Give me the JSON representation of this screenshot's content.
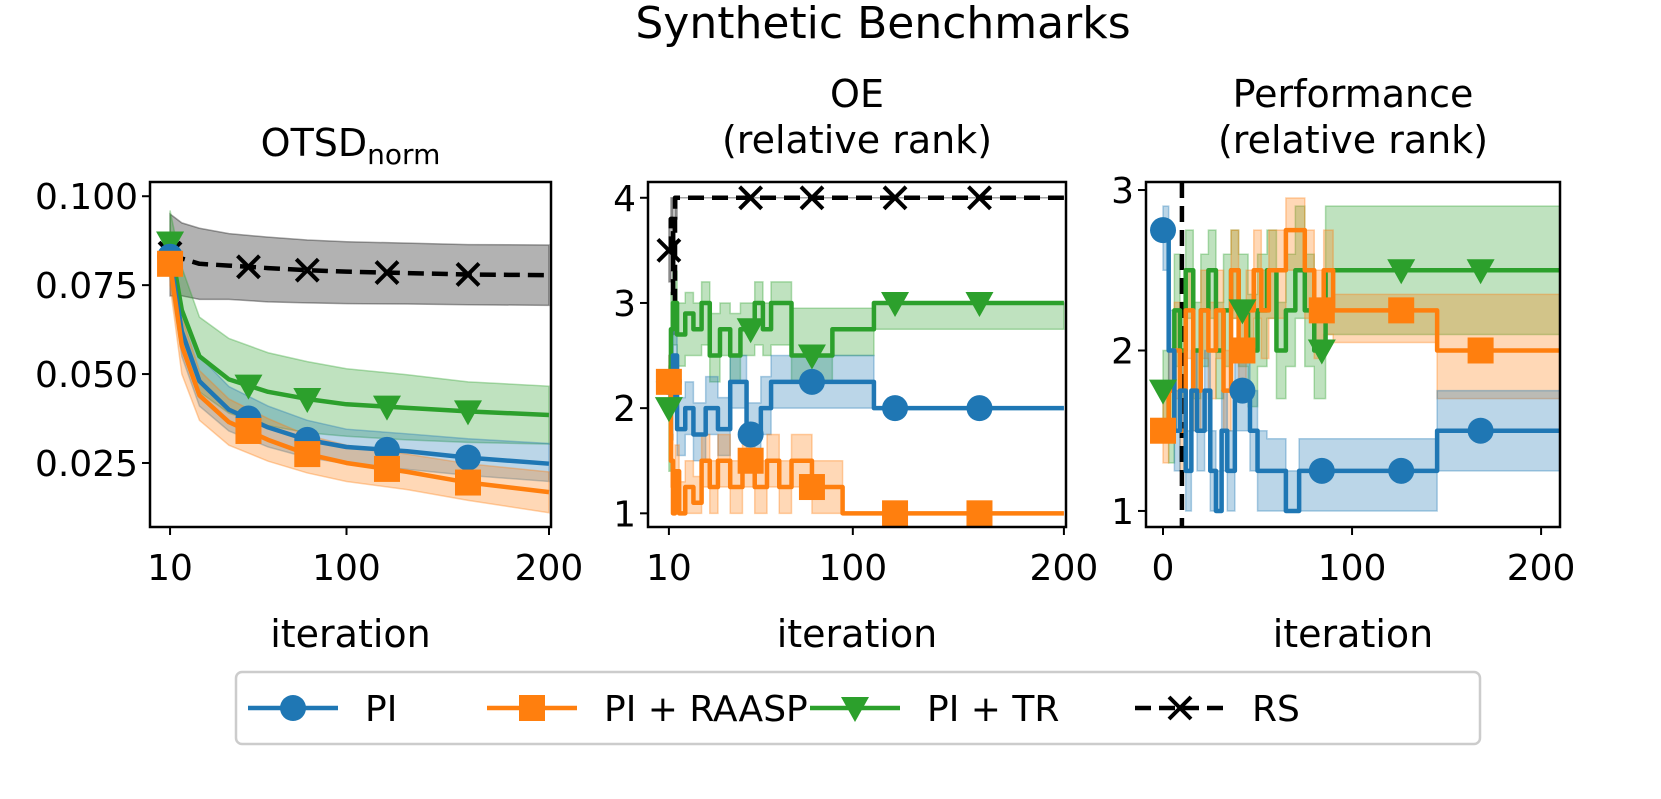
{
  "figure": {
    "title": "Synthetic Benchmarks"
  },
  "colors": {
    "PI": "#1f77b4",
    "PI + RAASP": "#ff7f0e",
    "PI + TR": "#2ca02c",
    "RS": "#000000"
  },
  "legend": {
    "items": [
      {
        "label": "PI",
        "color": "#1f77b4",
        "marker": "circle",
        "dash": "solid"
      },
      {
        "label": "PI + RAASP",
        "color": "#ff7f0e",
        "marker": "square",
        "dash": "solid"
      },
      {
        "label": "PI + TR",
        "color": "#2ca02c",
        "marker": "triangle-down",
        "dash": "solid"
      },
      {
        "label": "RS",
        "color": "#000000",
        "marker": "x",
        "dash": "dashed"
      }
    ]
  },
  "chart_data": [
    {
      "type": "line",
      "title_main": "OTSD",
      "title_sub": "norm",
      "xlabel": "iteration",
      "ylabel": "",
      "xlim": [
        10,
        200
      ],
      "ylim": [
        0.007,
        0.104
      ],
      "xticks": [
        10,
        100,
        200
      ],
      "xtick_labels": [
        "10",
        "100",
        "200"
      ],
      "yticks": [
        0.025,
        0.05,
        0.075,
        0.1
      ],
      "ytick_labels": [
        "0.025",
        "0.050",
        "0.075",
        "0.100"
      ],
      "series": [
        {
          "name": "RS",
          "style": "smooth",
          "x": [
            10,
            16,
            25,
            40,
            60,
            80,
            100,
            130,
            160,
            200
          ],
          "y": [
            0.084,
            0.0825,
            0.081,
            0.0805,
            0.0798,
            0.0792,
            0.0788,
            0.0784,
            0.078,
            0.0778
          ],
          "lo": [
            0.072,
            0.072,
            0.071,
            0.071,
            0.0703,
            0.07,
            0.0698,
            0.0697,
            0.0695,
            0.0693
          ],
          "hi": [
            0.095,
            0.0925,
            0.091,
            0.0895,
            0.0885,
            0.0877,
            0.0872,
            0.0868,
            0.0864,
            0.0863
          ],
          "markers_x": [
            10,
            50,
            80,
            120,
            160
          ]
        },
        {
          "name": "PI + TR",
          "style": "smooth",
          "x": [
            10,
            16,
            25,
            40,
            60,
            80,
            100,
            130,
            160,
            200
          ],
          "y": [
            0.087,
            0.068,
            0.055,
            0.0485,
            0.045,
            0.043,
            0.0415,
            0.0405,
            0.0395,
            0.0385
          ],
          "lo": [
            0.079,
            0.058,
            0.045,
            0.039,
            0.0355,
            0.0335,
            0.0325,
            0.0315,
            0.0308,
            0.0303
          ],
          "hi": [
            0.096,
            0.08,
            0.066,
            0.06,
            0.056,
            0.0535,
            0.0515,
            0.0498,
            0.0478,
            0.0466
          ],
          "markers_x": [
            10,
            50,
            80,
            120,
            160
          ]
        },
        {
          "name": "PI",
          "style": "smooth",
          "x": [
            10,
            16,
            25,
            40,
            60,
            80,
            100,
            130,
            160,
            200
          ],
          "y": [
            0.083,
            0.062,
            0.048,
            0.04,
            0.035,
            0.0315,
            0.0295,
            0.0283,
            0.0265,
            0.0248
          ],
          "lo": [
            0.077,
            0.055,
            0.041,
            0.034,
            0.0295,
            0.0265,
            0.0248,
            0.0232,
            0.0215,
            0.0198
          ],
          "hi": [
            0.09,
            0.069,
            0.055,
            0.0465,
            0.041,
            0.037,
            0.0345,
            0.0332,
            0.0318,
            0.0305
          ],
          "markers_x": [
            10,
            50,
            80,
            120,
            160
          ]
        },
        {
          "name": "PI + RAASP",
          "style": "smooth",
          "x": [
            10,
            16,
            25,
            40,
            60,
            80,
            100,
            130,
            160,
            200
          ],
          "y": [
            0.081,
            0.058,
            0.044,
            0.0365,
            0.0315,
            0.0275,
            0.025,
            0.0225,
            0.0195,
            0.0168
          ],
          "lo": [
            0.075,
            0.05,
            0.037,
            0.03,
            0.0255,
            0.0222,
            0.0198,
            0.0175,
            0.0145,
            0.011
          ],
          "hi": [
            0.087,
            0.066,
            0.051,
            0.043,
            0.0375,
            0.0328,
            0.03,
            0.0275,
            0.0248,
            0.0225
          ],
          "markers_x": [
            10,
            50,
            80,
            120,
            160
          ]
        }
      ]
    },
    {
      "type": "line",
      "title_lines": [
        "OE",
        "(relative rank)"
      ],
      "xlabel": "iteration",
      "ylabel": "",
      "xlim": [
        10,
        200
      ],
      "ylim": [
        0.87,
        4.15
      ],
      "xticks": [
        10,
        100,
        200
      ],
      "xtick_labels": [
        "10",
        "100",
        "200"
      ],
      "yticks": [
        1,
        2,
        3,
        4
      ],
      "ytick_labels": [
        "1",
        "2",
        "3",
        "4"
      ],
      "series": [
        {
          "name": "RS",
          "style": "step",
          "x": [
            10,
            11,
            12,
            13,
            14,
            200
          ],
          "y": [
            3.5,
            3.8,
            3.0,
            4.0,
            4.0,
            4.0
          ],
          "lo": [
            3.2,
            3.3,
            2.7,
            3.8,
            4.0,
            4.0
          ],
          "hi": [
            3.8,
            4.0,
            3.6,
            4.0,
            4.0,
            4.0
          ],
          "markers_x": [
            10,
            50,
            80,
            120,
            160
          ]
        },
        {
          "name": "PI + TR",
          "style": "step",
          "x": [
            10,
            11,
            12,
            14,
            18,
            22,
            26,
            30,
            35,
            40,
            45,
            52,
            56,
            60,
            70,
            80,
            90,
            110,
            200
          ],
          "y": [
            2.0,
            2.75,
            3.0,
            2.7,
            2.9,
            2.75,
            3.0,
            2.5,
            2.75,
            2.5,
            2.75,
            3.0,
            2.75,
            3.0,
            2.5,
            2.5,
            2.75,
            3.0,
            3.0
          ],
          "lo": [
            1.4,
            2.3,
            2.6,
            2.4,
            2.5,
            2.5,
            2.6,
            2.25,
            2.5,
            2.25,
            2.5,
            2.6,
            2.5,
            2.6,
            2.25,
            2.25,
            2.5,
            2.75,
            3.0
          ],
          "hi": [
            2.4,
            3.1,
            3.3,
            3.0,
            3.1,
            3.0,
            3.2,
            2.9,
            3.0,
            2.9,
            3.0,
            3.2,
            3.0,
            3.2,
            2.95,
            2.95,
            2.95,
            3.0,
            3.0
          ],
          "markers_x": [
            10,
            50,
            80,
            120,
            160
          ]
        },
        {
          "name": "PI",
          "style": "step",
          "x": [
            10,
            11,
            12,
            14,
            18,
            22,
            28,
            34,
            40,
            48,
            55,
            60,
            65,
            70,
            90,
            110,
            200
          ],
          "y": [
            2.25,
            2.0,
            2.5,
            1.8,
            2.0,
            1.75,
            2.0,
            1.8,
            2.25,
            1.75,
            2.0,
            2.25,
            2.25,
            2.25,
            2.25,
            2.0,
            2.0
          ],
          "lo": [
            2.0,
            1.7,
            2.2,
            1.55,
            1.75,
            1.5,
            1.75,
            1.55,
            2.0,
            1.5,
            1.75,
            2.0,
            2.0,
            2.0,
            2.0,
            2.0,
            2.0
          ],
          "hi": [
            2.5,
            2.3,
            2.75,
            2.1,
            2.25,
            2.05,
            2.3,
            2.1,
            2.5,
            2.05,
            2.3,
            2.5,
            2.5,
            2.5,
            2.5,
            2.0,
            2.0
          ],
          "markers_x": [
            10,
            50,
            80,
            120,
            160
          ]
        },
        {
          "name": "PI + RAASP",
          "style": "step",
          "x": [
            10,
            11,
            12,
            13,
            15,
            18,
            22,
            26,
            30,
            34,
            40,
            46,
            52,
            58,
            64,
            70,
            80,
            90,
            95,
            200
          ],
          "y": [
            2.25,
            1.5,
            1.0,
            1.4,
            1.0,
            1.25,
            1.1,
            1.5,
            1.25,
            1.5,
            1.25,
            1.5,
            1.25,
            1.5,
            1.25,
            1.5,
            1.25,
            1.25,
            1.0,
            1.0
          ],
          "lo": [
            2.0,
            1.25,
            1.0,
            1.15,
            1.0,
            1.0,
            1.0,
            1.25,
            1.0,
            1.25,
            1.0,
            1.25,
            1.0,
            1.25,
            1.0,
            1.25,
            1.0,
            1.0,
            1.0,
            1.0
          ],
          "hi": [
            2.5,
            1.75,
            1.25,
            1.65,
            1.3,
            1.5,
            1.35,
            1.75,
            1.5,
            1.75,
            1.5,
            1.75,
            1.5,
            1.75,
            1.5,
            1.75,
            1.5,
            1.5,
            1.0,
            1.0
          ],
          "markers_x": [
            10,
            50,
            80,
            120,
            160
          ]
        }
      ]
    },
    {
      "type": "line",
      "title_lines": [
        "Performance",
        "(relative rank)"
      ],
      "xlabel": "iteration",
      "ylabel": "",
      "xlim": [
        -9,
        210
      ],
      "ylim": [
        0.9,
        3.05
      ],
      "xticks": [
        0,
        100,
        200
      ],
      "xtick_labels": [
        "0",
        "100",
        "200"
      ],
      "yticks": [
        1,
        2,
        3
      ],
      "ytick_labels": [
        "1",
        "2",
        "3"
      ],
      "vline_x": 10,
      "series": [
        {
          "name": "PI + TR",
          "style": "step",
          "x": [
            0,
            3,
            6,
            9,
            12,
            16,
            20,
            24,
            28,
            32,
            36,
            40,
            45,
            50,
            55,
            60,
            65,
            70,
            75,
            80,
            86,
            90,
            140,
            210
          ],
          "y": [
            1.75,
            1.5,
            2.25,
            2.0,
            2.5,
            2.0,
            2.25,
            2.5,
            2.0,
            2.25,
            2.5,
            2.25,
            2.0,
            2.25,
            2.5,
            2.0,
            2.25,
            2.5,
            2.25,
            2.0,
            2.5,
            2.5,
            2.5,
            2.5
          ],
          "lo": [
            1.5,
            1.3,
            1.9,
            1.7,
            2.2,
            1.7,
            1.9,
            2.2,
            1.7,
            1.9,
            2.2,
            1.9,
            1.65,
            1.9,
            2.2,
            1.7,
            1.9,
            2.2,
            1.9,
            1.7,
            2.1,
            2.1,
            2.1,
            2.1
          ],
          "hi": [
            2.0,
            1.8,
            2.6,
            2.3,
            2.75,
            2.3,
            2.6,
            2.75,
            2.3,
            2.6,
            2.75,
            2.6,
            2.35,
            2.6,
            2.75,
            2.3,
            2.6,
            2.9,
            2.6,
            2.3,
            2.9,
            2.9,
            2.9,
            2.9
          ],
          "markers_x": [
            0,
            42,
            84,
            126,
            168
          ]
        },
        {
          "name": "PI + RAASP",
          "style": "step",
          "x": [
            0,
            3,
            6,
            9,
            12,
            16,
            20,
            24,
            28,
            32,
            36,
            40,
            44,
            48,
            52,
            56,
            60,
            65,
            70,
            75,
            80,
            85,
            90,
            145,
            210
          ],
          "y": [
            1.5,
            1.75,
            2.0,
            1.5,
            2.25,
            1.75,
            2.25,
            2.0,
            2.25,
            1.75,
            2.5,
            2.0,
            2.25,
            2.5,
            2.25,
            2.5,
            2.5,
            2.75,
            2.75,
            2.5,
            2.25,
            2.5,
            2.25,
            2.0,
            2.0
          ],
          "lo": [
            1.3,
            1.5,
            1.7,
            1.25,
            1.95,
            1.5,
            1.95,
            1.7,
            1.95,
            1.5,
            2.2,
            1.7,
            1.95,
            2.2,
            1.95,
            2.2,
            2.2,
            2.5,
            2.5,
            2.2,
            1.95,
            2.1,
            2.05,
            1.7,
            1.7
          ],
          "hi": [
            1.75,
            2.0,
            2.3,
            1.8,
            2.5,
            2.0,
            2.5,
            2.3,
            2.5,
            2.0,
            2.75,
            2.3,
            2.5,
            2.75,
            2.5,
            2.75,
            2.75,
            2.95,
            2.95,
            2.75,
            2.5,
            2.75,
            2.35,
            2.35,
            2.35
          ],
          "markers_x": [
            0,
            42,
            84,
            126,
            168
          ]
        },
        {
          "name": "PI",
          "style": "step",
          "x": [
            0,
            3,
            6,
            9,
            12,
            15,
            18,
            22,
            25,
            28,
            31,
            34,
            38,
            42,
            46,
            50,
            55,
            60,
            65,
            72,
            80,
            100,
            145,
            210
          ],
          "y": [
            2.75,
            2.0,
            1.5,
            1.75,
            1.25,
            1.75,
            1.5,
            1.75,
            1.25,
            1.0,
            1.5,
            1.25,
            1.75,
            1.75,
            1.5,
            1.25,
            1.25,
            1.25,
            1.0,
            1.25,
            1.25,
            1.25,
            1.5,
            1.5
          ],
          "lo": [
            2.5,
            1.75,
            1.25,
            1.5,
            1.0,
            1.5,
            1.25,
            1.5,
            1.0,
            1.0,
            1.25,
            1.0,
            1.5,
            1.5,
            1.25,
            1.0,
            1.0,
            1.0,
            1.0,
            1.0,
            1.0,
            1.0,
            1.25,
            1.25
          ],
          "hi": [
            2.9,
            2.25,
            1.75,
            2.0,
            1.5,
            2.0,
            1.75,
            2.0,
            1.5,
            1.25,
            1.75,
            1.5,
            2.0,
            2.0,
            1.75,
            1.5,
            1.45,
            1.45,
            1.25,
            1.45,
            1.45,
            1.45,
            1.75,
            1.75
          ],
          "markers_x": [
            0,
            42,
            84,
            126,
            168
          ]
        }
      ]
    }
  ]
}
